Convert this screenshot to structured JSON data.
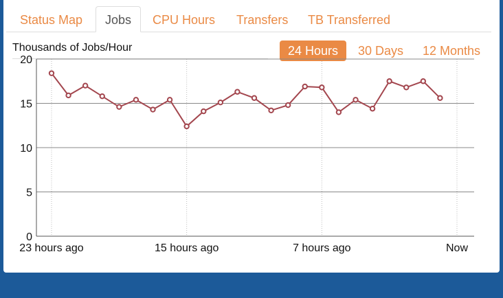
{
  "tabs": [
    {
      "label": "Status Map",
      "active": false
    },
    {
      "label": "Jobs",
      "active": true
    },
    {
      "label": "CPU Hours",
      "active": false
    },
    {
      "label": "Transfers",
      "active": false
    },
    {
      "label": "TB Transferred",
      "active": false
    }
  ],
  "ranges": [
    {
      "label": "24 Hours",
      "active": true
    },
    {
      "label": "30 Days",
      "active": false
    },
    {
      "label": "12 Months",
      "active": false
    }
  ],
  "colors": {
    "accent": "#ea8a45",
    "line": "#a3464e",
    "background": "#1c5a99"
  },
  "chart_data": {
    "type": "line",
    "title": "Thousands of Jobs/Hour",
    "ylim": [
      0,
      20
    ],
    "yticks": [
      0,
      5,
      10,
      15,
      20
    ],
    "x_hours_ago": [
      23,
      22,
      21,
      20,
      19,
      18,
      17,
      16,
      15,
      14,
      13,
      12,
      11,
      10,
      9,
      8,
      7,
      6,
      5,
      4,
      3,
      2,
      1,
      0
    ],
    "xlim_hours_ago": [
      23,
      -1
    ],
    "xtick_labels": [
      {
        "hours_ago": 23,
        "label": "23 hours ago"
      },
      {
        "hours_ago": 15,
        "label": "15 hours ago"
      },
      {
        "hours_ago": 7,
        "label": "7 hours ago"
      },
      {
        "hours_ago": -1,
        "label": "Now"
      }
    ],
    "grid": true,
    "series": [
      {
        "values": [
          18.4,
          15.9,
          17.0,
          15.8,
          14.6,
          15.4,
          14.3,
          15.4,
          12.4,
          14.1,
          15.1,
          16.3,
          15.6,
          14.2,
          14.8,
          16.9,
          16.8,
          14.0,
          15.4,
          14.4,
          17.5,
          16.8,
          17.5,
          15.6
        ]
      }
    ]
  }
}
